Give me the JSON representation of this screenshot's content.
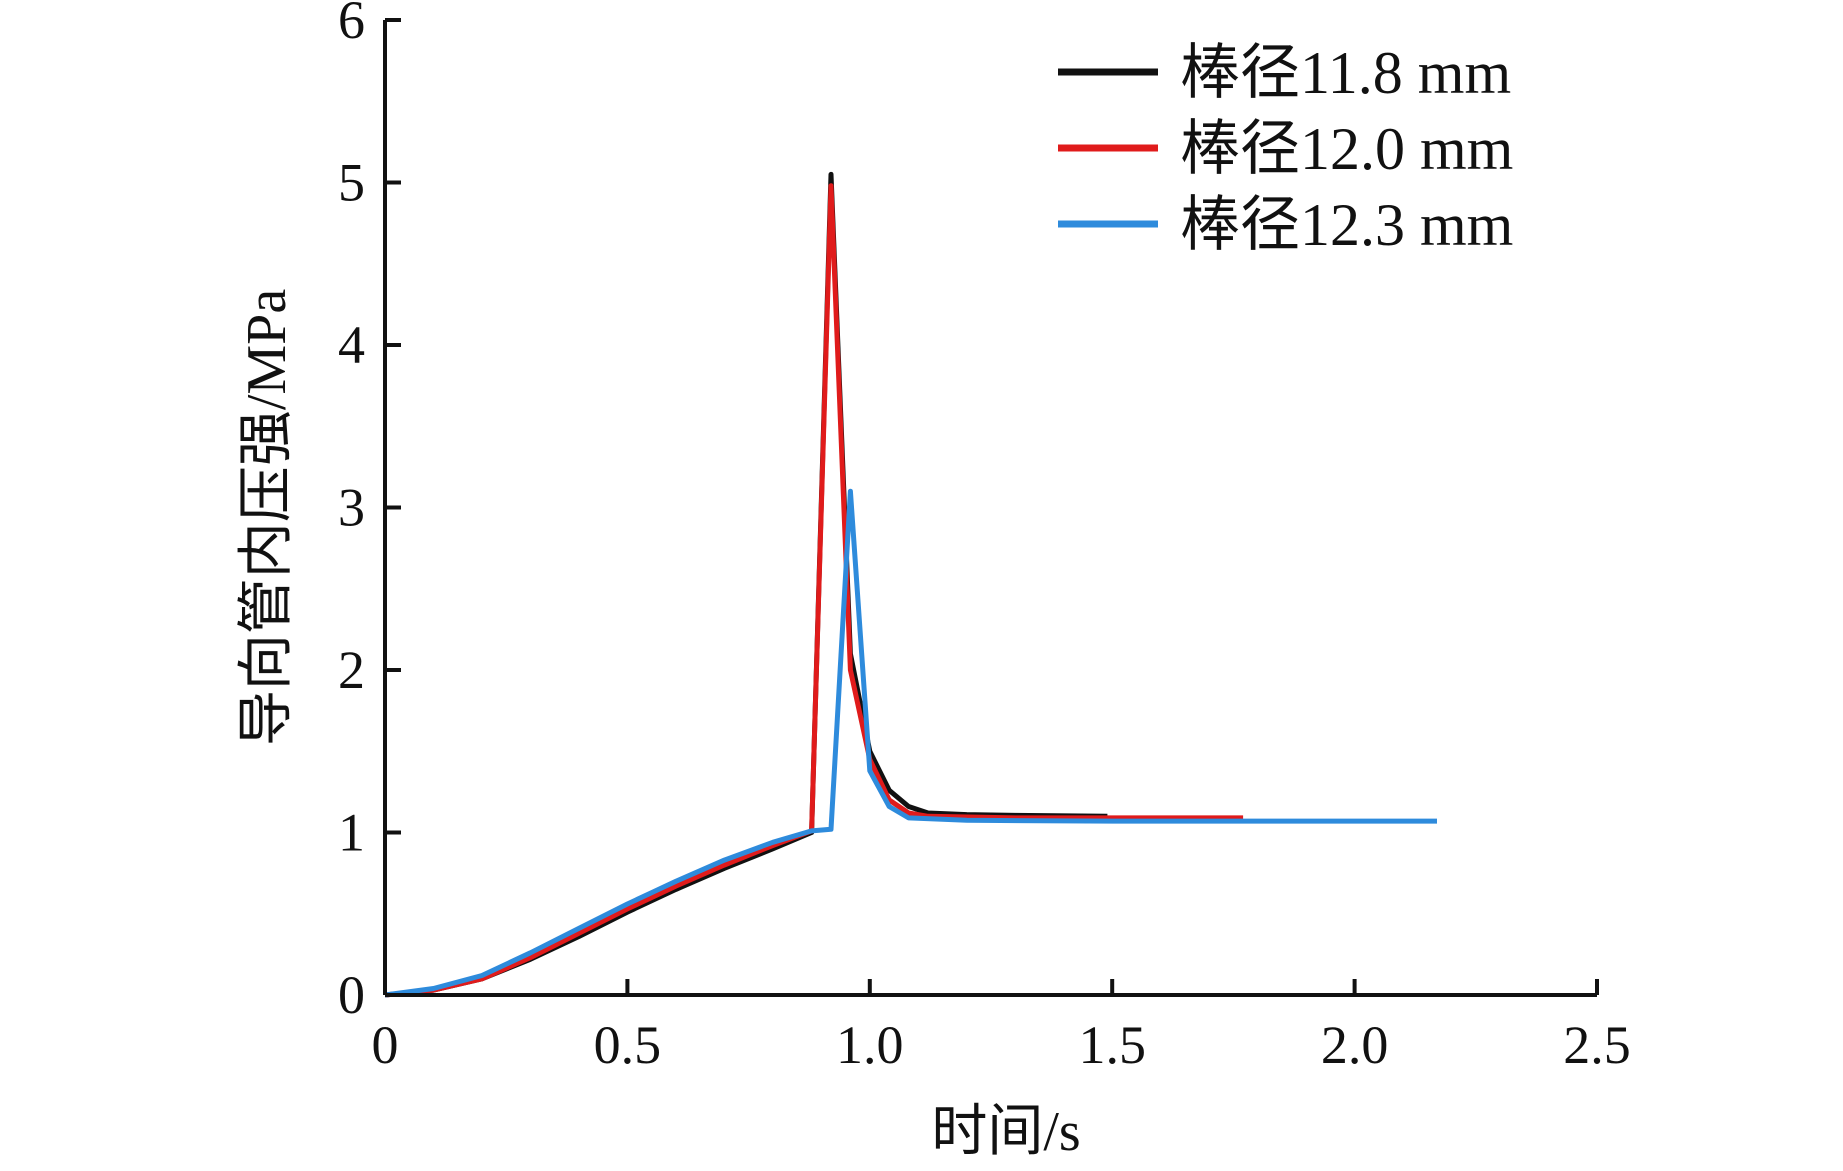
{
  "chart_data": {
    "type": "line",
    "title": "",
    "xlabel": "时间/s",
    "ylabel": "导向管内压强/MPa",
    "xlim": [
      0,
      2.5
    ],
    "ylim": [
      0,
      6
    ],
    "x_ticks": [
      0,
      0.5,
      1.0,
      1.5,
      2.0,
      2.5
    ],
    "x_tick_labels": [
      "0",
      "0.5",
      "1.0",
      "1.5",
      "2.0",
      "2.5"
    ],
    "y_ticks": [
      0,
      1,
      2,
      3,
      4,
      5,
      6
    ],
    "y_tick_labels": [
      "0",
      "1",
      "2",
      "3",
      "4",
      "5",
      "6"
    ],
    "grid": false,
    "legend_position": "top-right",
    "series": [
      {
        "name": "棒径11.8 mm",
        "color": "#111111",
        "points": [
          [
            0,
            0
          ],
          [
            0.1,
            0.03
          ],
          [
            0.2,
            0.1
          ],
          [
            0.3,
            0.22
          ],
          [
            0.4,
            0.36
          ],
          [
            0.5,
            0.51
          ],
          [
            0.6,
            0.65
          ],
          [
            0.7,
            0.78
          ],
          [
            0.8,
            0.9
          ],
          [
            0.88,
            1.0
          ],
          [
            0.92,
            5.05
          ],
          [
            0.96,
            2.1
          ],
          [
            1.0,
            1.5
          ],
          [
            1.04,
            1.26
          ],
          [
            1.08,
            1.16
          ],
          [
            1.12,
            1.12
          ],
          [
            1.2,
            1.11
          ],
          [
            1.3,
            1.105
          ],
          [
            1.49,
            1.1
          ]
        ]
      },
      {
        "name": "棒径12.0 mm",
        "color": "#e01b1b",
        "points": [
          [
            0,
            0
          ],
          [
            0.1,
            0.03
          ],
          [
            0.2,
            0.1
          ],
          [
            0.3,
            0.23
          ],
          [
            0.4,
            0.38
          ],
          [
            0.5,
            0.53
          ],
          [
            0.6,
            0.67
          ],
          [
            0.7,
            0.8
          ],
          [
            0.8,
            0.92
          ],
          [
            0.88,
            1.01
          ],
          [
            0.92,
            4.98
          ],
          [
            0.96,
            2.0
          ],
          [
            1.0,
            1.45
          ],
          [
            1.04,
            1.2
          ],
          [
            1.08,
            1.12
          ],
          [
            1.12,
            1.1
          ],
          [
            1.3,
            1.09
          ],
          [
            1.77,
            1.09
          ]
        ]
      },
      {
        "name": "棒径12.3 mm",
        "color": "#2e8bdc",
        "points": [
          [
            0,
            0
          ],
          [
            0.1,
            0.04
          ],
          [
            0.2,
            0.12
          ],
          [
            0.3,
            0.26
          ],
          [
            0.4,
            0.41
          ],
          [
            0.5,
            0.56
          ],
          [
            0.6,
            0.7
          ],
          [
            0.7,
            0.83
          ],
          [
            0.8,
            0.94
          ],
          [
            0.88,
            1.01
          ],
          [
            0.92,
            1.02
          ],
          [
            0.96,
            3.1
          ],
          [
            1.0,
            1.38
          ],
          [
            1.04,
            1.16
          ],
          [
            1.08,
            1.09
          ],
          [
            1.2,
            1.075
          ],
          [
            1.5,
            1.07
          ],
          [
            2.17,
            1.07
          ]
        ]
      }
    ]
  }
}
